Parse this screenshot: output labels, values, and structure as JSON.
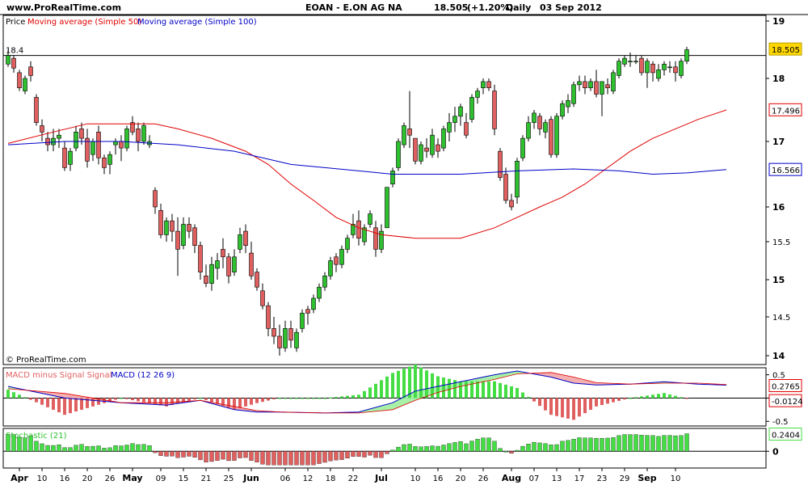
{
  "header": {
    "site": "www.ProRealTime.com",
    "instrument": "EOAN - E.ON AG NA",
    "last": "18.505",
    "change": "(+1.20%)",
    "period": "Daily",
    "date": "03 Sep 2012"
  },
  "watermark": "© ProRealTime.com",
  "legend": {
    "price": "Price",
    "ma50": "Moving average (Simple 50)",
    "ma100": "Moving average (Simple 100)",
    "macd_hist": "MACD minus Signal Signal",
    "macd": "MACD (12 26 9)",
    "third": "Stochastic (21)"
  },
  "colors": {
    "up": "#2ec02e",
    "down": "#e06060",
    "ma50": "#e00000",
    "ma100": "#0000c8",
    "last_badge": "#ffd700",
    "ma50_badge_text": "#cc0000",
    "ma100_badge_text": "#0000c8",
    "indicator_bar": "#44dd44"
  },
  "chart_data": [
    {
      "type": "candlestick",
      "title": "EOAN - E.ON AG NA",
      "yticks": [
        "19",
        "18",
        "17",
        "16",
        "15.5",
        "15",
        "14.5",
        "14"
      ],
      "ylim": [
        13.95,
        19.05
      ],
      "xticks": [
        "Apr",
        "10",
        "16",
        "20",
        "26",
        "May",
        "09",
        "15",
        "21",
        "25",
        "Jun",
        "06",
        "12",
        "18",
        "22",
        "Jul",
        "10",
        "16",
        "20",
        "26",
        "Aug",
        "07",
        "13",
        "17",
        "23",
        "29",
        "Sep",
        "10"
      ],
      "reference_line": {
        "label": "18.4",
        "value": 18.4
      },
      "badges": {
        "last": "18.505",
        "ma50": "17.496",
        "ma100": "16.566"
      },
      "ohlc": [
        [
          18.25,
          18.5,
          18.2,
          18.4
        ],
        [
          18.35,
          18.4,
          18.1,
          18.18
        ],
        [
          18.1,
          18.15,
          17.8,
          17.85
        ],
        [
          17.8,
          18.05,
          17.75,
          18.0
        ],
        [
          18.2,
          18.3,
          17.95,
          18.05
        ],
        [
          17.7,
          17.75,
          17.25,
          17.3
        ],
        [
          17.25,
          17.35,
          17.0,
          17.15
        ],
        [
          17.05,
          17.15,
          16.85,
          16.95
        ],
        [
          16.95,
          17.2,
          16.85,
          17.05
        ],
        [
          17.05,
          17.2,
          16.9,
          17.1
        ],
        [
          16.9,
          17.0,
          16.55,
          16.6
        ],
        [
          16.65,
          16.9,
          16.55,
          16.85
        ],
        [
          16.9,
          17.25,
          16.85,
          17.15
        ],
        [
          17.2,
          17.3,
          16.95,
          17.05
        ],
        [
          17.05,
          17.2,
          16.6,
          16.7
        ],
        [
          16.8,
          17.05,
          16.7,
          17.0
        ],
        [
          17.15,
          17.25,
          16.65,
          16.75
        ],
        [
          16.75,
          16.8,
          16.5,
          16.6
        ],
        [
          16.65,
          16.85,
          16.5,
          16.8
        ],
        [
          16.95,
          17.05,
          16.8,
          17.0
        ],
        [
          17.0,
          17.1,
          16.7,
          16.9
        ],
        [
          16.9,
          17.25,
          16.85,
          17.2
        ],
        [
          17.3,
          17.4,
          17.1,
          17.15
        ],
        [
          17.2,
          17.3,
          16.85,
          17.0
        ],
        [
          17.0,
          17.3,
          16.95,
          17.25
        ],
        [
          16.95,
          17.1,
          16.9,
          17.0
        ],
        [
          16.25,
          16.3,
          15.9,
          16.0
        ],
        [
          15.95,
          16.05,
          15.55,
          15.6
        ],
        [
          15.6,
          15.85,
          15.5,
          15.8
        ],
        [
          15.8,
          15.9,
          15.5,
          15.65
        ],
        [
          15.65,
          15.85,
          15.05,
          15.4
        ],
        [
          15.45,
          15.85,
          15.4,
          15.75
        ],
        [
          15.75,
          15.85,
          15.55,
          15.65
        ],
        [
          15.7,
          15.75,
          15.35,
          15.45
        ],
        [
          15.45,
          15.5,
          15.0,
          15.1
        ],
        [
          15.05,
          15.2,
          14.9,
          14.95
        ],
        [
          14.95,
          15.3,
          14.85,
          15.2
        ],
        [
          15.15,
          15.35,
          15.0,
          15.25
        ],
        [
          15.4,
          15.55,
          15.15,
          15.3
        ],
        [
          15.3,
          15.35,
          14.95,
          15.05
        ],
        [
          15.1,
          15.4,
          15.05,
          15.3
        ],
        [
          15.4,
          15.7,
          15.35,
          15.6
        ],
        [
          15.65,
          15.75,
          15.35,
          15.45
        ],
        [
          15.35,
          15.5,
          15.0,
          15.05
        ],
        [
          15.1,
          15.15,
          14.85,
          14.9
        ],
        [
          14.85,
          14.95,
          14.6,
          14.65
        ],
        [
          14.65,
          14.7,
          14.25,
          14.35
        ],
        [
          14.35,
          14.5,
          14.15,
          14.25
        ],
        [
          14.25,
          14.4,
          14.0,
          14.1
        ],
        [
          14.1,
          14.45,
          14.05,
          14.35
        ],
        [
          14.35,
          14.45,
          14.1,
          14.2
        ],
        [
          14.1,
          14.35,
          14.05,
          14.3
        ],
        [
          14.35,
          14.6,
          14.3,
          14.55
        ],
        [
          14.6,
          14.65,
          14.4,
          14.55
        ],
        [
          14.6,
          14.8,
          14.55,
          14.75
        ],
        [
          14.75,
          14.95,
          14.7,
          14.9
        ],
        [
          14.9,
          15.1,
          14.85,
          15.05
        ],
        [
          15.05,
          15.3,
          15.0,
          15.25
        ],
        [
          15.3,
          15.35,
          15.1,
          15.2
        ],
        [
          15.2,
          15.45,
          15.15,
          15.4
        ],
        [
          15.4,
          15.6,
          15.35,
          15.55
        ],
        [
          15.6,
          15.9,
          15.55,
          15.75
        ],
        [
          15.8,
          15.95,
          15.45,
          15.55
        ],
        [
          15.5,
          15.75,
          15.45,
          15.7
        ],
        [
          15.75,
          15.95,
          15.7,
          15.9
        ],
        [
          15.7,
          15.8,
          15.3,
          15.4
        ],
        [
          15.4,
          15.75,
          15.35,
          15.65
        ],
        [
          15.7,
          16.3,
          15.7,
          16.3
        ],
        [
          16.35,
          16.6,
          16.3,
          16.55
        ],
        [
          16.6,
          17.05,
          16.55,
          17.0
        ],
        [
          16.95,
          17.3,
          16.9,
          17.25
        ],
        [
          17.2,
          17.8,
          16.9,
          17.1
        ],
        [
          17.05,
          17.05,
          16.65,
          16.7
        ],
        [
          16.7,
          17.0,
          16.65,
          16.95
        ],
        [
          16.9,
          17.05,
          16.75,
          16.85
        ],
        [
          16.8,
          17.2,
          16.75,
          17.1
        ],
        [
          16.95,
          17.05,
          16.75,
          16.85
        ],
        [
          16.9,
          17.25,
          16.85,
          17.2
        ],
        [
          17.15,
          17.45,
          17.0,
          17.3
        ],
        [
          17.3,
          17.55,
          17.15,
          17.4
        ],
        [
          17.4,
          17.6,
          17.25,
          17.55
        ],
        [
          17.3,
          17.45,
          17.05,
          17.1
        ],
        [
          17.35,
          17.75,
          17.3,
          17.7
        ],
        [
          17.7,
          17.85,
          17.6,
          17.8
        ],
        [
          17.85,
          18.0,
          17.75,
          17.95
        ],
        [
          17.95,
          18.0,
          17.8,
          17.85
        ],
        [
          17.8,
          17.9,
          17.1,
          17.2
        ],
        [
          16.85,
          16.9,
          16.4,
          16.45
        ],
        [
          16.5,
          16.6,
          16.05,
          16.1
        ],
        [
          16.1,
          16.2,
          15.95,
          16.0
        ],
        [
          16.15,
          16.75,
          16.05,
          16.7
        ],
        [
          16.75,
          17.1,
          16.7,
          17.05
        ],
        [
          17.05,
          17.4,
          17.0,
          17.3
        ],
        [
          17.3,
          17.5,
          17.2,
          17.45
        ],
        [
          17.4,
          17.45,
          17.1,
          17.2
        ],
        [
          17.15,
          17.35,
          17.05,
          17.3
        ],
        [
          17.35,
          17.4,
          16.75,
          16.8
        ],
        [
          16.8,
          17.45,
          16.75,
          17.4
        ],
        [
          17.4,
          17.65,
          17.35,
          17.6
        ],
        [
          17.55,
          17.75,
          17.45,
          17.65
        ],
        [
          17.6,
          17.95,
          17.55,
          17.9
        ],
        [
          17.9,
          18.05,
          17.8,
          17.95
        ],
        [
          17.95,
          18.05,
          17.75,
          17.85
        ],
        [
          17.85,
          18.0,
          17.8,
          17.95
        ],
        [
          17.95,
          18.15,
          17.7,
          17.75
        ],
        [
          17.75,
          17.95,
          17.4,
          17.95
        ],
        [
          17.9,
          18.0,
          17.75,
          17.85
        ],
        [
          17.8,
          18.15,
          17.75,
          18.1
        ],
        [
          18.05,
          18.35,
          18.0,
          18.3
        ],
        [
          18.25,
          18.4,
          18.2,
          18.35
        ],
        [
          18.3,
          18.45,
          18.2,
          18.3
        ],
        [
          18.3,
          18.4,
          18.25,
          18.3
        ],
        [
          18.35,
          18.4,
          18.05,
          18.1
        ],
        [
          18.1,
          18.35,
          17.85,
          18.3
        ],
        [
          18.25,
          18.3,
          17.95,
          18.1
        ],
        [
          18.0,
          18.25,
          17.95,
          18.15
        ],
        [
          18.15,
          18.3,
          18.05,
          18.25
        ],
        [
          18.2,
          18.3,
          18.1,
          18.2
        ],
        [
          18.2,
          18.3,
          17.95,
          18.1
        ],
        [
          18.05,
          18.35,
          18.0,
          18.3
        ],
        [
          18.3,
          18.55,
          18.25,
          18.5
        ]
      ],
      "series": [
        {
          "name": "Moving average (Simple 50)",
          "x": [
            0,
            8,
            14,
            20,
            26,
            30,
            36,
            42,
            46,
            50,
            54,
            58,
            62,
            66,
            72,
            76,
            80,
            86,
            90,
            94,
            98,
            102,
            106,
            110,
            114,
            118,
            122,
            127
          ],
          "values": [
            16.97,
            17.15,
            17.28,
            17.28,
            17.28,
            17.2,
            17.05,
            16.85,
            16.65,
            16.35,
            16.1,
            15.85,
            15.7,
            15.6,
            15.55,
            15.55,
            15.55,
            15.7,
            15.85,
            16.0,
            16.15,
            16.35,
            16.6,
            16.85,
            17.05,
            17.2,
            17.35,
            17.5
          ]
        },
        {
          "name": "Moving average (Simple 100)",
          "x": [
            0,
            10,
            20,
            30,
            40,
            50,
            56,
            62,
            68,
            74,
            80,
            90,
            100,
            108,
            114,
            120,
            127
          ],
          "values": [
            16.95,
            17.0,
            17.0,
            16.95,
            16.85,
            16.65,
            16.6,
            16.55,
            16.5,
            16.5,
            16.5,
            16.55,
            16.58,
            16.55,
            16.5,
            16.52,
            16.57
          ]
        }
      ]
    },
    {
      "type": "bar+line",
      "title": "MACD minus Signal Signal MACD (12 26 9)",
      "yticks": [
        "0.5",
        "0",
        "-0.5"
      ],
      "ylim": [
        -0.6,
        0.65
      ],
      "badges": {
        "macd": "0.2765",
        "signal_diff": "-0.0124"
      },
      "macd_x": [
        0,
        10,
        20,
        28,
        34,
        40,
        44,
        48,
        56,
        62,
        68,
        72,
        76,
        80,
        86,
        90,
        96,
        100,
        104,
        110,
        116,
        122,
        127
      ],
      "macd": [
        0.25,
        0.0,
        -0.1,
        -0.15,
        -0.05,
        -0.25,
        -0.3,
        -0.3,
        -0.32,
        -0.3,
        -0.1,
        0.15,
        0.25,
        0.35,
        0.5,
        0.58,
        0.45,
        0.32,
        0.28,
        0.3,
        0.35,
        0.3,
        0.2765
      ],
      "signal": [
        0.2,
        0.1,
        -0.1,
        -0.1,
        -0.05,
        -0.18,
        -0.27,
        -0.3,
        -0.32,
        -0.32,
        -0.25,
        -0.05,
        0.12,
        0.25,
        0.4,
        0.52,
        0.55,
        0.45,
        0.33,
        0.3,
        0.32,
        0.32,
        0.289
      ]
    },
    {
      "type": "bar",
      "title": "Stochastic (21)",
      "yticks": [
        "0"
      ],
      "ylim": [
        -1.1,
        1.5
      ],
      "badges": {
        "value": "0.2404"
      }
    }
  ]
}
